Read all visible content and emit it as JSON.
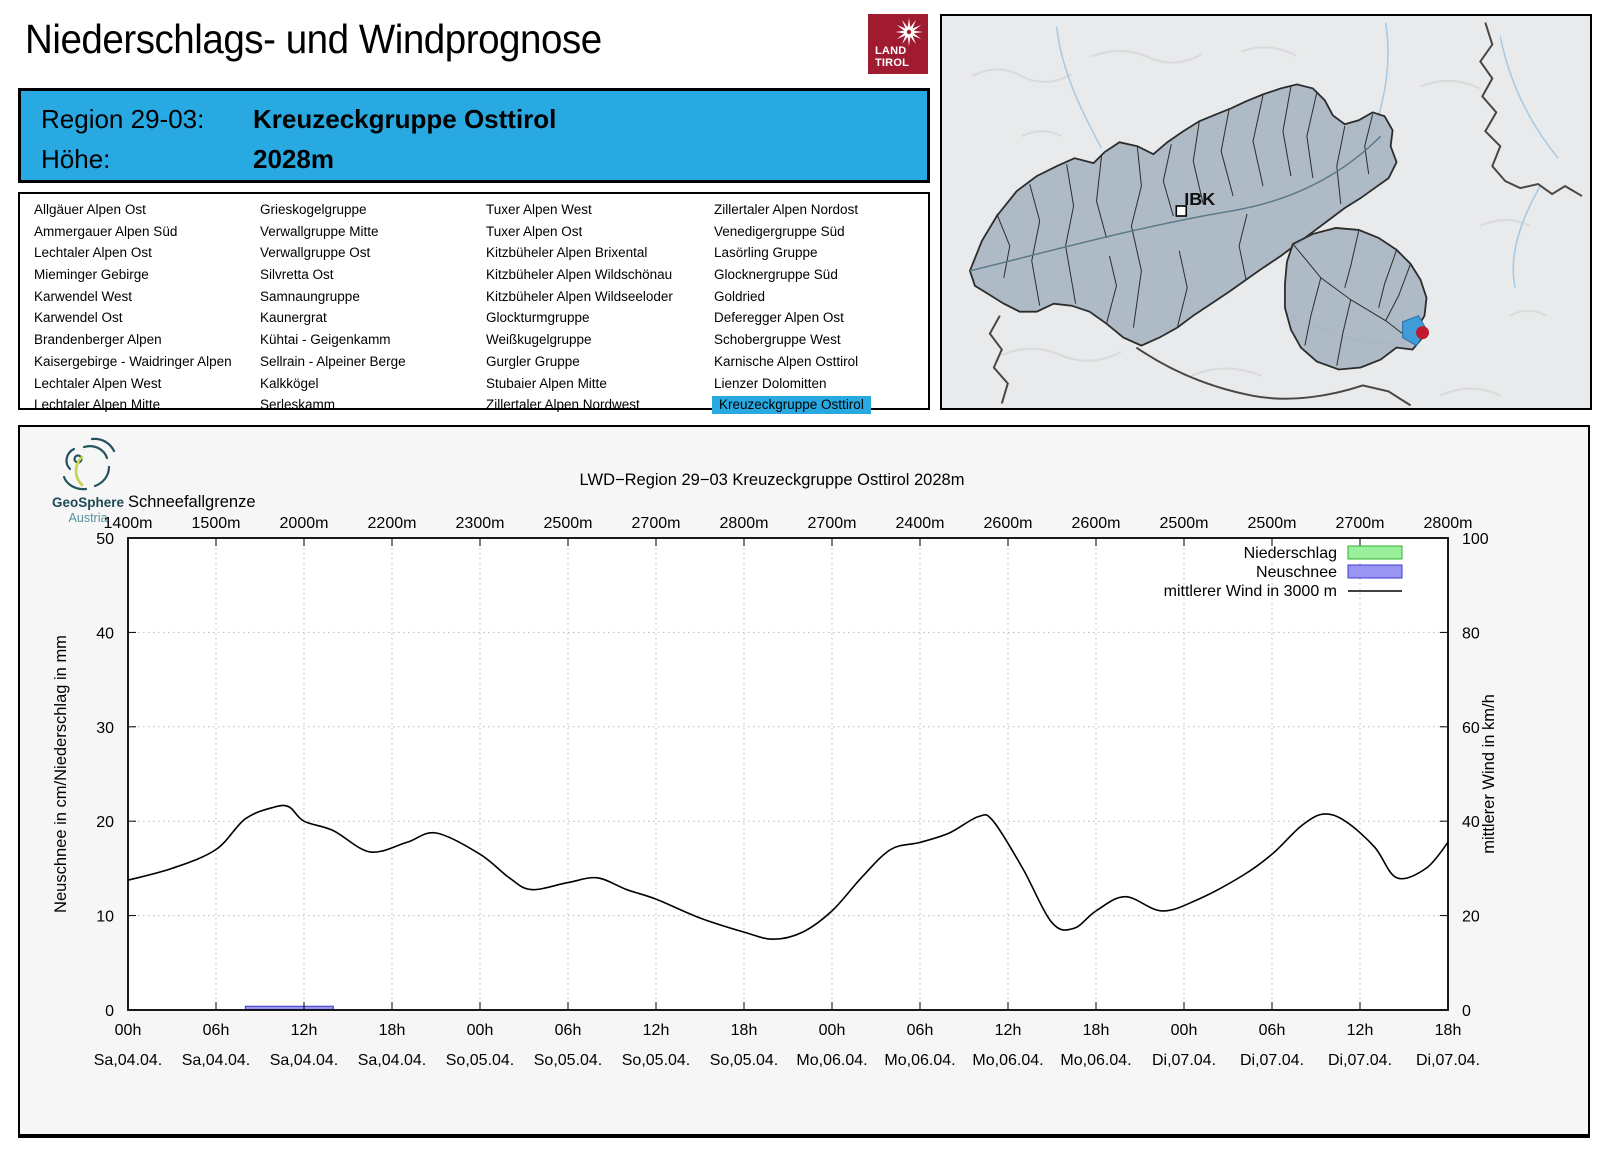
{
  "header": {
    "title": "Niederschlags- und Windprognose",
    "logo": {
      "line1": "LAND",
      "line2": "TIROL"
    }
  },
  "region_header": {
    "region_label": "Region 29-03:",
    "region_value": "Kreuzeckgruppe Osttirol",
    "altitude_label": "Höhe:",
    "altitude_value": "2028m"
  },
  "region_table": {
    "selected": "Kreuzeckgruppe Osttirol",
    "columns": [
      [
        "Allgäuer Alpen Ost",
        "Ammergauer Alpen Süd",
        "Lechtaler Alpen Ost",
        "Mieminger Gebirge",
        "Karwendel West",
        "Karwendel Ost",
        "Brandenberger Alpen",
        "Kaisergebirge - Waidringer Alpen",
        "Lechtaler Alpen West",
        "Lechtaler Alpen Mitte"
      ],
      [
        "Grieskogelgruppe",
        "Verwallgruppe Mitte",
        "Verwallgruppe Ost",
        "Silvretta Ost",
        "Samnaungruppe",
        "Kaunergrat",
        "Kühtai - Geigenkamm",
        "Sellrain - Alpeiner Berge",
        "Kalkkögel",
        "Serleskamm"
      ],
      [
        "Tuxer Alpen West",
        "Tuxer Alpen Ost",
        "Kitzbüheler Alpen Brixental",
        "Kitzbüheler Alpen Wildschönau",
        "Kitzbüheler Alpen Wildseeloder",
        "Glockturmgruppe",
        "Weißkugelgruppe",
        "Gurgler Gruppe",
        "Stubaier Alpen Mitte",
        "Zillertaler Alpen Nordwest"
      ],
      [
        "Zillertaler Alpen Nordost",
        "Venedigergruppe Süd",
        "Lasörling Gruppe",
        "Glocknergruppe Süd",
        "Goldried",
        "Deferegger Alpen Ost",
        "Schobergruppe West",
        "Karnische Alpen Osttirol",
        "Lienzer Dolomitten",
        "Kreuzeckgruppe Osttirol"
      ]
    ]
  },
  "map": {
    "city_label": "IBK",
    "highlight_color": "#3f9cd9",
    "marker_color": "#c01a2e"
  },
  "geosphere": {
    "name": "GeoSphere",
    "sub": "Austria"
  },
  "accent_color": "#29a9e2",
  "chart_data": {
    "type": "line",
    "title": "LWD−Region 29−03 Kreuzeckgruppe Osttirol 2028m",
    "snowline_label": "Schneefallgrenze",
    "snowline_values": [
      "1400m",
      "1500m",
      "2000m",
      "2200m",
      "2300m",
      "2500m",
      "2700m",
      "2800m",
      "2700m",
      "2400m",
      "2600m",
      "2600m",
      "2500m",
      "2500m",
      "2700m",
      "2800m"
    ],
    "x_ticks": [
      {
        "hour": "00h",
        "day": "Sa,04.04."
      },
      {
        "hour": "06h",
        "day": "Sa,04.04."
      },
      {
        "hour": "12h",
        "day": "Sa,04.04."
      },
      {
        "hour": "18h",
        "day": "Sa,04.04."
      },
      {
        "hour": "00h",
        "day": "So,05.04."
      },
      {
        "hour": "06h",
        "day": "So,05.04."
      },
      {
        "hour": "12h",
        "day": "So,05.04."
      },
      {
        "hour": "18h",
        "day": "So,05.04."
      },
      {
        "hour": "00h",
        "day": "Mo,06.04."
      },
      {
        "hour": "06h",
        "day": "Mo,06.04."
      },
      {
        "hour": "12h",
        "day": "Mo,06.04."
      },
      {
        "hour": "18h",
        "day": "Mo,06.04."
      },
      {
        "hour": "00h",
        "day": "Di,07.04."
      },
      {
        "hour": "06h",
        "day": "Di,07.04."
      },
      {
        "hour": "12h",
        "day": "Di,07.04."
      },
      {
        "hour": "18h",
        "day": "Di,07.04."
      }
    ],
    "x_range_hours": [
      0,
      90
    ],
    "ylabel_left": "Neuschnee in cm/Niederschlag in mm",
    "ylabel_right": "mittlerer Wind in km/h",
    "ylim_left": [
      0,
      50
    ],
    "ylim_right": [
      0,
      100
    ],
    "left_ticks": [
      0,
      10,
      20,
      30,
      40,
      50
    ],
    "right_ticks": [
      0,
      20,
      40,
      60,
      80,
      100
    ],
    "grid": true,
    "legend_position": "top-right",
    "legend": [
      {
        "label": "Niederschlag",
        "type": "box",
        "fill": "#99f09b",
        "stroke": "#33b133"
      },
      {
        "label": "Neuschnee",
        "type": "box",
        "fill": "#9896f2",
        "stroke": "#3d3ccc"
      },
      {
        "label": "mittlerer Wind in 3000 m",
        "type": "line",
        "stroke": "#000000"
      }
    ],
    "bars": [
      {
        "name": "Neuschnee",
        "start_hour": 8,
        "end_hour": 14,
        "value_cm": 0.4,
        "fill": "#9896f2",
        "stroke": "#3d3ccc"
      }
    ],
    "series": [
      {
        "name": "mittlerer Wind in 3000 m",
        "axis": "right",
        "x_hours": [
          0,
          3,
          6,
          8,
          10,
          11,
          12,
          14,
          16.5,
          19,
          21,
          24,
          26,
          27.5,
          30,
          32,
          34,
          36,
          39,
          42,
          44,
          46,
          48,
          50,
          52,
          54,
          56,
          58,
          59,
          61,
          63,
          64.5,
          66,
          68,
          70.5,
          73,
          76,
          78,
          80,
          81.5,
          83,
          85,
          86.5,
          88.5,
          90
        ],
        "wind_kmh": [
          27.5,
          30,
          34,
          40.5,
          43,
          43,
          40,
          38,
          33.5,
          35.5,
          37.5,
          33,
          28,
          25.5,
          27,
          28,
          25.5,
          23.5,
          19.5,
          16.5,
          15,
          16.5,
          21,
          28,
          34,
          35.5,
          37.5,
          41,
          40,
          30,
          18.5,
          17.3,
          21,
          24,
          21,
          23.5,
          28.5,
          33,
          39,
          41.5,
          40,
          34.5,
          28,
          30,
          35.5
        ]
      }
    ]
  }
}
